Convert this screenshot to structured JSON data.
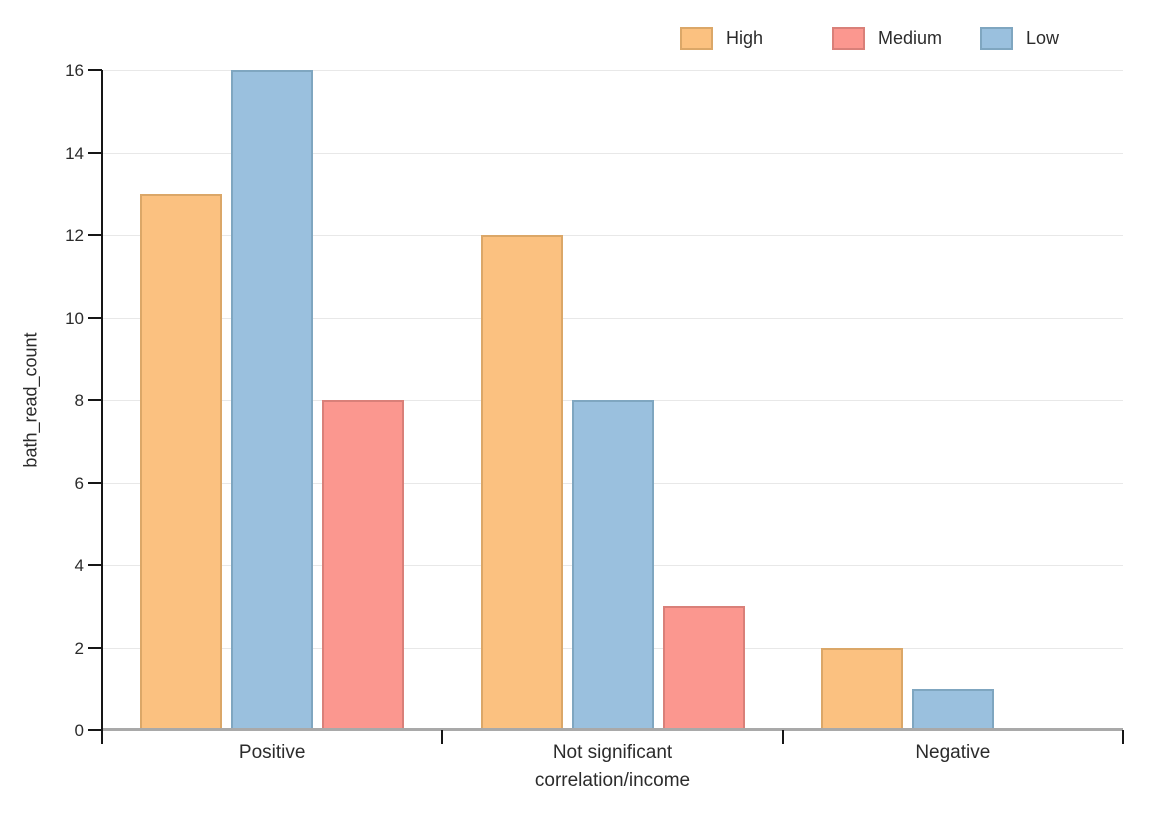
{
  "chart_data": {
    "type": "bar",
    "title": "",
    "xlabel": "correlation/income",
    "ylabel": "bath_read_count",
    "categories": [
      "Positive",
      "Not significant",
      "Negative"
    ],
    "series": [
      {
        "name": "High",
        "fill": "#FBC180",
        "border": "#DBA768",
        "values": [
          13,
          12,
          2
        ]
      },
      {
        "name": "Low",
        "fill": "#9AC0DE",
        "border": "#7FA6C0",
        "values": [
          16,
          8,
          1
        ]
      },
      {
        "name": "Medium",
        "fill": "#FB978F",
        "border": "#D98079",
        "values": [
          8,
          3,
          0
        ]
      }
    ],
    "bar_draw_order": [
      "High",
      "Low",
      "Medium"
    ],
    "legend": {
      "order": [
        "High",
        "Medium",
        "Low"
      ],
      "position": "top-right"
    },
    "ylim": [
      0,
      16
    ],
    "yticks": [
      0,
      2,
      4,
      6,
      8,
      10,
      12,
      14,
      16
    ],
    "grid": true
  },
  "colors": {
    "grid": "#e8e8e8",
    "x_axis": "#a9a9a9",
    "y_axis": "#161616",
    "text": "#2b2b2b"
  }
}
